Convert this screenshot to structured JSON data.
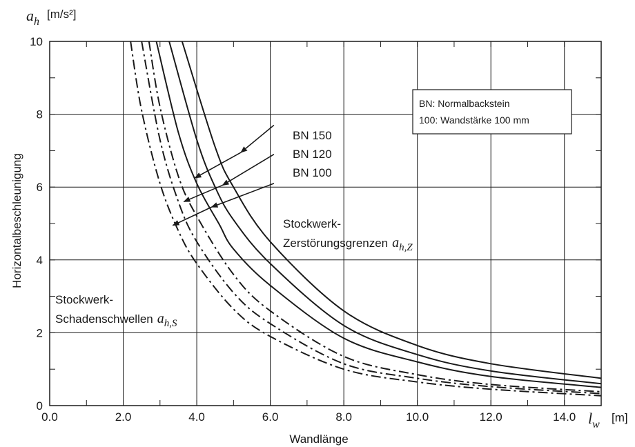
{
  "chart_data": {
    "type": "line",
    "title": "",
    "xlabel": "Wandlänge",
    "ylabel": "Horizontalbeschleunigung",
    "x_symbol": "l",
    "x_symbol_sub": "w",
    "x_unit": "[m]",
    "y_symbol": "a",
    "y_symbol_sub": "h",
    "y_unit": "[m/s²]",
    "xlim": [
      0,
      15
    ],
    "ylim": [
      0,
      10
    ],
    "xticks": [
      "0.0",
      "2.0",
      "4.0",
      "6.0",
      "8.0",
      "10.0",
      "12.0",
      "14.0"
    ],
    "yticks": [
      "0",
      "2",
      "4",
      "6",
      "8",
      "10"
    ],
    "grid": true,
    "legend_box": {
      "placement": "top-right",
      "lines": [
        "BN: Normalbackstein",
        "100: Wandstärke 100 mm"
      ]
    },
    "annotations": {
      "arrow_labels": [
        "BN 150",
        "BN 120",
        "BN 100"
      ],
      "zerstoerung_line1": "Stockwerk-",
      "zerstoerung_line2": "Zerstörungsgrenzen",
      "zerstoerung_symbol": "a",
      "zerstoerung_sub": "h,Z",
      "schaden_line1": "Stockwerk-",
      "schaden_line2": "Schadenschwellen",
      "schaden_symbol": "a",
      "schaden_sub": "h,S"
    },
    "series": [
      {
        "group": "zerstoerung",
        "style": "solid",
        "x": [
          3.6,
          4.5,
          5.0,
          6.0,
          8.0,
          10.0,
          12.0,
          15.0
        ],
        "y": [
          10.0,
          7.1,
          6.0,
          4.5,
          2.6,
          1.65,
          1.15,
          0.75
        ]
      },
      {
        "group": "zerstoerung",
        "style": "solid",
        "x": [
          3.25,
          4.0,
          4.5,
          5.0,
          6.0,
          8.0,
          10.0,
          12.0,
          15.0
        ],
        "y": [
          10.0,
          7.3,
          6.0,
          5.1,
          3.9,
          2.2,
          1.4,
          0.95,
          0.6
        ]
      },
      {
        "group": "zerstoerung",
        "style": "solid",
        "x": [
          2.9,
          3.5,
          4.0,
          4.6,
          5.0,
          6.0,
          8.0,
          10.0,
          12.0,
          15.0
        ],
        "y": [
          10.0,
          7.5,
          6.1,
          5.0,
          4.3,
          3.3,
          1.85,
          1.2,
          0.8,
          0.5
        ]
      },
      {
        "group": "schaden",
        "style": "dashdot",
        "x": [
          2.7,
          3.0,
          3.5,
          4.0,
          5.0,
          6.0,
          8.0,
          10.0,
          12.0,
          15.0
        ],
        "y": [
          10.0,
          8.2,
          6.3,
          5.2,
          3.6,
          2.6,
          1.35,
          0.85,
          0.58,
          0.38
        ]
      },
      {
        "group": "schaden",
        "style": "dashdot",
        "x": [
          2.5,
          3.0,
          3.5,
          4.0,
          5.0,
          6.0,
          8.0,
          10.0,
          12.0,
          15.0
        ],
        "y": [
          10.0,
          7.3,
          5.6,
          4.5,
          3.1,
          2.25,
          1.15,
          0.75,
          0.52,
          0.33
        ]
      },
      {
        "group": "schaden",
        "style": "dashdot",
        "x": [
          2.2,
          2.5,
          3.0,
          3.5,
          4.0,
          5.0,
          6.0,
          8.0,
          10.0,
          12.0,
          15.0
        ],
        "y": [
          10.0,
          8.1,
          6.1,
          4.8,
          3.9,
          2.65,
          1.9,
          1.0,
          0.65,
          0.45,
          0.27
        ]
      }
    ],
    "arrows": [
      {
        "label": "BN 150",
        "from": [
          6.1,
          7.7
        ],
        "to_a": [
          5.2,
          6.95
        ],
        "to_b": [
          3.95,
          6.25
        ]
      },
      {
        "label": "BN 120",
        "from": [
          6.1,
          6.9
        ],
        "to_a": [
          4.7,
          6.05
        ],
        "to_b": [
          3.65,
          5.6
        ]
      },
      {
        "label": "BN 100",
        "from": [
          6.1,
          6.1
        ],
        "to_a": [
          4.4,
          5.45
        ],
        "to_b": [
          3.35,
          4.95
        ]
      }
    ]
  }
}
